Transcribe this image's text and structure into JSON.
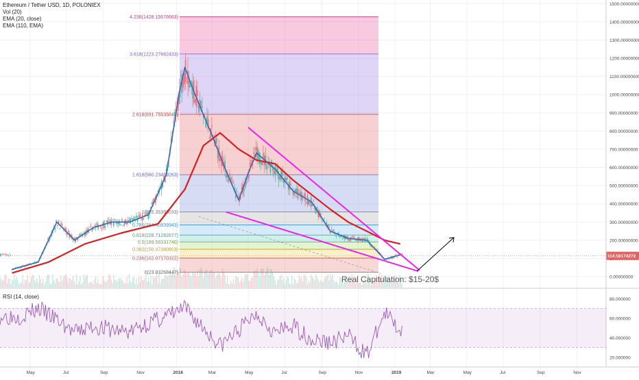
{
  "header": {
    "symbol_line": "Ethereum / Tether USD, 1D, POLONIEX",
    "indicators": [
      "Vol (20)",
      "EMA (20, close)",
      "EMA (110, EMA)"
    ]
  },
  "rsi_label": "RSI (14, close)",
  "annotation": "Real Capitulation: $15-20$",
  "colors": {
    "ema20": "#3a66b0",
    "ema110": "#d81e1e",
    "wedge": "#ee22ee",
    "up": "#4db6a4",
    "down": "#e3727a",
    "rsi": "#9b59b6",
    "price_tag": "#e06464"
  },
  "chart_data": [
    {
      "type": "line",
      "title": "Ethereum / Tether USD, 1D, POLONIEX",
      "x_ticks": [
        "May",
        "Jul",
        "Sep",
        "Nov",
        "2018",
        "Mar",
        "May",
        "Jul",
        "Sep",
        "Nov",
        "2019",
        "Mar",
        "May",
        "Jul",
        "Sep",
        "Nov"
      ],
      "y_ticks": [
        "1500.00000000",
        "1400.00000000",
        "1300.00000000",
        "1200.00000000",
        "1100.00000000",
        "1000.00000000",
        "900.00000000",
        "800.00000000",
        "700.00000000",
        "600.00000000",
        "500.00000000",
        "400.00000000",
        "300.00000000",
        "200.00000000",
        "100.00000000",
        "0.00000000"
      ],
      "ylim": [
        -60,
        1520
      ],
      "current_price_label": "114.50174272",
      "current_price": 114.5,
      "series": [
        {
          "name": "EMA (20, close)",
          "x": [
            "2017-04-01",
            "2017-05-15",
            "2017-06-15",
            "2017-07-15",
            "2017-08-15",
            "2017-09-15",
            "2017-10-15",
            "2017-11-15",
            "2017-12-15",
            "2018-01-05",
            "2018-01-15",
            "2018-02-01",
            "2018-03-01",
            "2018-03-25",
            "2018-04-15",
            "2018-05-01",
            "2018-05-15",
            "2018-06-15",
            "2018-07-15",
            "2018-08-15",
            "2018-09-15",
            "2018-10-15",
            "2018-11-15",
            "2018-12-15",
            "2019-01-10"
          ],
          "values": [
            40,
            80,
            300,
            200,
            270,
            300,
            300,
            340,
            560,
            1000,
            1150,
            1000,
            780,
            580,
            420,
            570,
            680,
            590,
            470,
            410,
            250,
            210,
            200,
            95,
            120
          ]
        },
        {
          "name": "EMA (110, EMA)",
          "x": [
            "2017-04-01",
            "2017-06-01",
            "2017-08-01",
            "2017-10-01",
            "2017-12-01",
            "2018-01-15",
            "2018-02-15",
            "2018-03-15",
            "2018-04-15",
            "2018-05-15",
            "2018-06-15",
            "2018-07-15",
            "2018-08-15",
            "2018-09-15",
            "2018-10-15",
            "2018-11-15",
            "2018-12-15",
            "2019-01-10"
          ],
          "values": [
            20,
            80,
            180,
            240,
            290,
            480,
            720,
            790,
            700,
            640,
            620,
            530,
            450,
            370,
            300,
            250,
            200,
            180
          ]
        },
        {
          "name": "RSI (14, close)",
          "x": [
            "2017-04",
            "2017-05",
            "2017-06",
            "2017-07",
            "2017-08",
            "2017-09",
            "2017-10",
            "2017-11",
            "2017-12",
            "2018-01",
            "2018-02",
            "2018-03",
            "2018-04",
            "2018-05",
            "2018-06",
            "2018-07",
            "2018-08",
            "2018-09",
            "2018-10",
            "2018-11",
            "2018-12",
            "2019-01"
          ],
          "values": [
            62,
            70,
            58,
            45,
            52,
            48,
            46,
            55,
            62,
            70,
            50,
            32,
            48,
            66,
            45,
            52,
            38,
            35,
            42,
            22,
            65,
            45
          ]
        }
      ],
      "fib_levels": [
        {
          "label": "4.236(1428.15676663)",
          "value": 1428.15676663
        },
        {
          "label": "3.618(1223.27662433)",
          "value": 1223.27662433
        },
        {
          "label": "2.618(891.75535848)",
          "value": 891.75535848
        },
        {
          "label": "1.618(560.23409263)",
          "value": 560.23409263
        },
        {
          "label": "1(355.35395033)",
          "value": 355.35395033
        },
        {
          "label": "0.786(284.40839943)",
          "value": 284.40839943
        },
        {
          "label": "0.618(228.71282677)",
          "value": 228.71282677
        },
        {
          "label": "0.5(189.59331740)",
          "value": 189.5933174
        },
        {
          "label": "0.382(150.47380803)",
          "value": 150.47380803
        },
        {
          "label": "0.236(102.07170322)",
          "value": 102.07170322
        },
        {
          "label": "0(23.83268447)",
          "value": 23.83268447
        }
      ],
      "rsi_ticks": [
        "80.000000",
        "60.000000",
        "40.000000",
        "20.000000"
      ],
      "rsi_band": [
        30,
        70
      ]
    }
  ]
}
